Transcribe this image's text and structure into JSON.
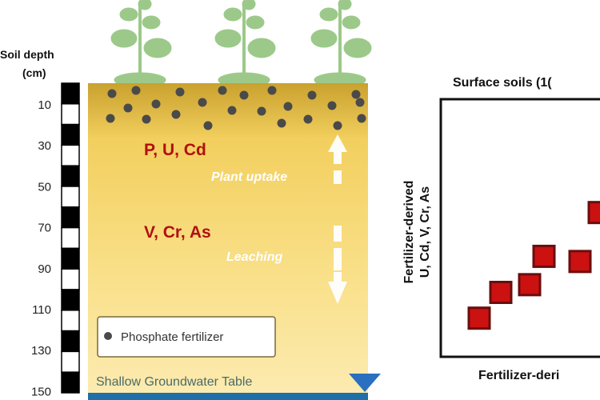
{
  "depth_axis": {
    "title_line1": "Soil depth",
    "title_line2": "(cm)",
    "ticks": [
      "10",
      "30",
      "50",
      "70",
      "90",
      "110",
      "130",
      "150"
    ]
  },
  "soil_column": {
    "upper_elements": "P, U, Cd",
    "lower_elements": "V, Cr, As",
    "uptake_label": "Plant uptake",
    "leaching_label": "Leaching",
    "legend_label": "Phosphate fertilizer",
    "groundwater_label": "Shallow Groundwater Table",
    "colors": {
      "soil_top": "#c9a12e",
      "soil_bottom": "#fbe9a6",
      "element_text": "#b01010",
      "fertilizer_dot": "#4a4a4a",
      "plant": "#9cc98a",
      "water": "#1f6fa8",
      "water_marker": "#2a6fc0"
    }
  },
  "chart_data": {
    "type": "scatter",
    "title": "Surface soils (1(",
    "xlabel": "Fertilizer-deri",
    "ylabel_line1": "Fertilizer-derived",
    "ylabel_line2": "U, Cd, V, Cr, As",
    "grid": false,
    "marker_color": "#cc1111",
    "xlim": [
      0,
      10
    ],
    "ylim": [
      0,
      10
    ],
    "points": [
      {
        "x": 1.6,
        "y": 1.5
      },
      {
        "x": 2.5,
        "y": 2.5
      },
      {
        "x": 3.7,
        "y": 2.8
      },
      {
        "x": 4.3,
        "y": 3.9
      },
      {
        "x": 5.8,
        "y": 3.7
      },
      {
        "x": 6.6,
        "y": 5.6
      }
    ]
  }
}
